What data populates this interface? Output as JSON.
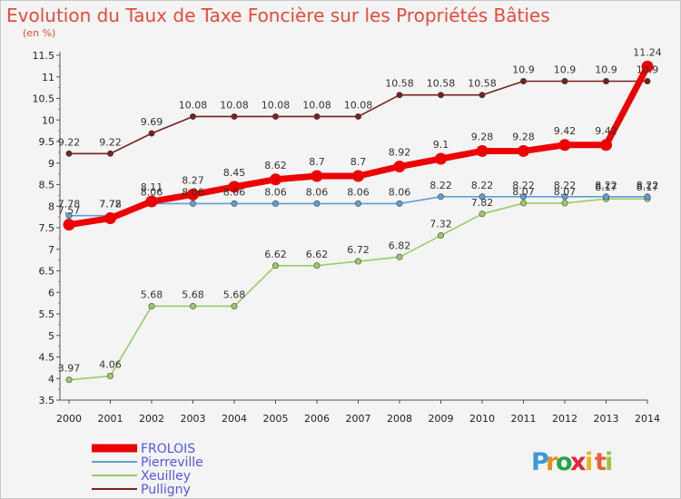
{
  "chart_data": {
    "type": "line",
    "title": "Evolution du Taux de Taxe Foncière sur les Propriétés Bâties",
    "subtitle": "(en %)",
    "categories": [
      "2000",
      "2001",
      "2002",
      "2003",
      "2004",
      "2005",
      "2006",
      "2007",
      "2008",
      "2009",
      "2010",
      "2011",
      "2012",
      "2013",
      "2014"
    ],
    "ylim": [
      3.5,
      11.5
    ],
    "yticks": [
      "3.5",
      "4",
      "4.5",
      "5",
      "5.5",
      "6",
      "6.5",
      "7",
      "7.5",
      "8",
      "8.5",
      "9",
      "9.5",
      "10",
      "10.5",
      "11",
      "11.5"
    ],
    "grid": false,
    "legend_position": "bottom-left",
    "series": [
      {
        "name": "Pulligny",
        "color": "#772121",
        "values": [
          9.22,
          9.22,
          9.69,
          10.08,
          10.08,
          10.08,
          10.08,
          10.08,
          10.58,
          10.58,
          10.58,
          10.9,
          10.9,
          10.9,
          10.9
        ],
        "labels": [
          "9.22",
          "9.22",
          "9.69",
          "10.08",
          "10.08",
          "10.08",
          "10.08",
          "10.08",
          "10.58",
          "10.58",
          "10.58",
          "10.9",
          "10.9",
          "10.9",
          "10.9"
        ]
      },
      {
        "name": "Xeuilley",
        "color": "#99cc66",
        "values": [
          3.97,
          4.06,
          5.68,
          5.68,
          5.68,
          6.62,
          6.62,
          6.72,
          6.82,
          7.32,
          7.82,
          8.07,
          8.07,
          8.17,
          8.17
        ],
        "labels": [
          "3.97",
          "4.06",
          "5.68",
          "5.68",
          "5.68",
          "6.62",
          "6.62",
          "6.72",
          "6.82",
          "7.32",
          "7.82",
          "8.07",
          "8.07",
          "8.17",
          "8.17"
        ]
      },
      {
        "name": "Pierreville",
        "color": "#5f9fd0",
        "values": [
          7.78,
          7.78,
          8.06,
          8.06,
          8.06,
          8.06,
          8.06,
          8.06,
          8.06,
          8.22,
          8.22,
          8.22,
          8.22,
          8.22,
          8.22
        ],
        "labels": [
          "7.78",
          "7.78",
          "8.06",
          "8.06",
          "8.06",
          "8.06",
          "8.06",
          "8.06",
          "8.06",
          "8.22",
          "8.22",
          "8.22",
          "8.22",
          "8.22",
          "8.22"
        ]
      },
      {
        "name": "FROLOIS",
        "color": "#ee0000",
        "values": [
          7.57,
          7.72,
          8.11,
          8.27,
          8.45,
          8.62,
          8.7,
          8.7,
          8.92,
          9.1,
          9.28,
          9.28,
          9.42,
          9.42,
          11.24
        ],
        "labels": [
          "7.57",
          "7.72",
          "8.11",
          "8.27",
          "8.45",
          "8.62",
          "8.7",
          "8.7",
          "8.92",
          "9.1",
          "9.28",
          "9.28",
          "9.42",
          "9.42",
          "11.24"
        ]
      }
    ],
    "legend": [
      "FROLOIS",
      "Pierreville",
      "Xeuilley",
      "Pulligny"
    ]
  },
  "logo": {
    "letters": [
      "P",
      "r",
      "o",
      "x",
      "i",
      "t",
      "i"
    ],
    "colors": [
      "#3a9ad9",
      "#f08a1c",
      "#2aa24a",
      "#e8233a",
      "#f0b418",
      "#e8603a",
      "#9bc73c"
    ]
  }
}
